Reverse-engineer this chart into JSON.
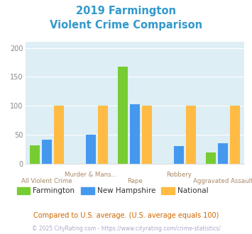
{
  "title_line1": "2019 Farmington",
  "title_line2": "Violent Crime Comparison",
  "title_color": "#3399cc",
  "categories": [
    "All Violent Crime",
    "Murder & Mans...",
    "Rape",
    "Robbery",
    "Aggravated Assault"
  ],
  "top_labels": [
    "",
    "Murder & Mans...",
    "",
    "Robbery",
    ""
  ],
  "bottom_labels": [
    "All Violent Crime",
    "",
    "Rape",
    "",
    "Aggravated Assault"
  ],
  "farmington": [
    32,
    0,
    168,
    0,
    19
  ],
  "new_hampshire": [
    41,
    50,
    103,
    30,
    35
  ],
  "national": [
    100,
    100,
    100,
    100,
    100
  ],
  "farmington_color": "#77cc33",
  "nh_color": "#4499ee",
  "national_color": "#ffbb44",
  "ylim": [
    0,
    210
  ],
  "yticks": [
    0,
    50,
    100,
    150,
    200
  ],
  "bg_color": "#ddeef4",
  "footnote1": "Compared to U.S. average. (U.S. average equals 100)",
  "footnote2": "© 2025 CityRating.com - https://www.cityrating.com/crime-statistics/",
  "footnote1_color": "#cc6600",
  "footnote2_color": "#aaaacc",
  "legend_labels": [
    "Farmington",
    "New Hampshire",
    "National"
  ],
  "legend_text_color": "#333333"
}
